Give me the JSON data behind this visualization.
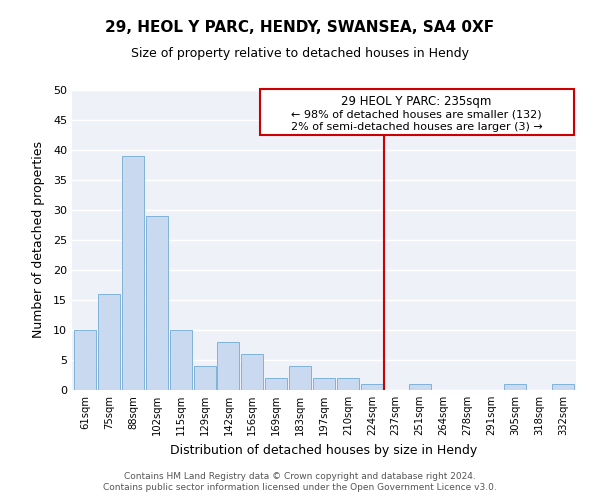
{
  "title": "29, HEOL Y PARC, HENDY, SWANSEA, SA4 0XF",
  "subtitle": "Size of property relative to detached houses in Hendy",
  "xlabel": "Distribution of detached houses by size in Hendy",
  "ylabel": "Number of detached properties",
  "bar_labels": [
    "61sqm",
    "75sqm",
    "88sqm",
    "102sqm",
    "115sqm",
    "129sqm",
    "142sqm",
    "156sqm",
    "169sqm",
    "183sqm",
    "197sqm",
    "210sqm",
    "224sqm",
    "237sqm",
    "251sqm",
    "264sqm",
    "278sqm",
    "291sqm",
    "305sqm",
    "318sqm",
    "332sqm"
  ],
  "bar_values": [
    10,
    16,
    39,
    29,
    10,
    4,
    8,
    6,
    2,
    4,
    2,
    2,
    1,
    0,
    1,
    0,
    0,
    0,
    1,
    0,
    1
  ],
  "bar_color": "#c8d9f0",
  "bar_edge_color": "#7fb3d8",
  "vline_color": "#cc0000",
  "ylim": [
    0,
    50
  ],
  "yticks": [
    0,
    5,
    10,
    15,
    20,
    25,
    30,
    35,
    40,
    45,
    50
  ],
  "annotation_title": "29 HEOL Y PARC: 235sqm",
  "annotation_line1": "← 98% of detached houses are smaller (132)",
  "annotation_line2": "2% of semi-detached houses are larger (3) →",
  "footer_line1": "Contains HM Land Registry data © Crown copyright and database right 2024.",
  "footer_line2": "Contains public sector information licensed under the Open Government Licence v3.0.",
  "plot_bg_color": "#eef2f8",
  "fig_bg_color": "#ffffff",
  "grid_color": "#ffffff"
}
